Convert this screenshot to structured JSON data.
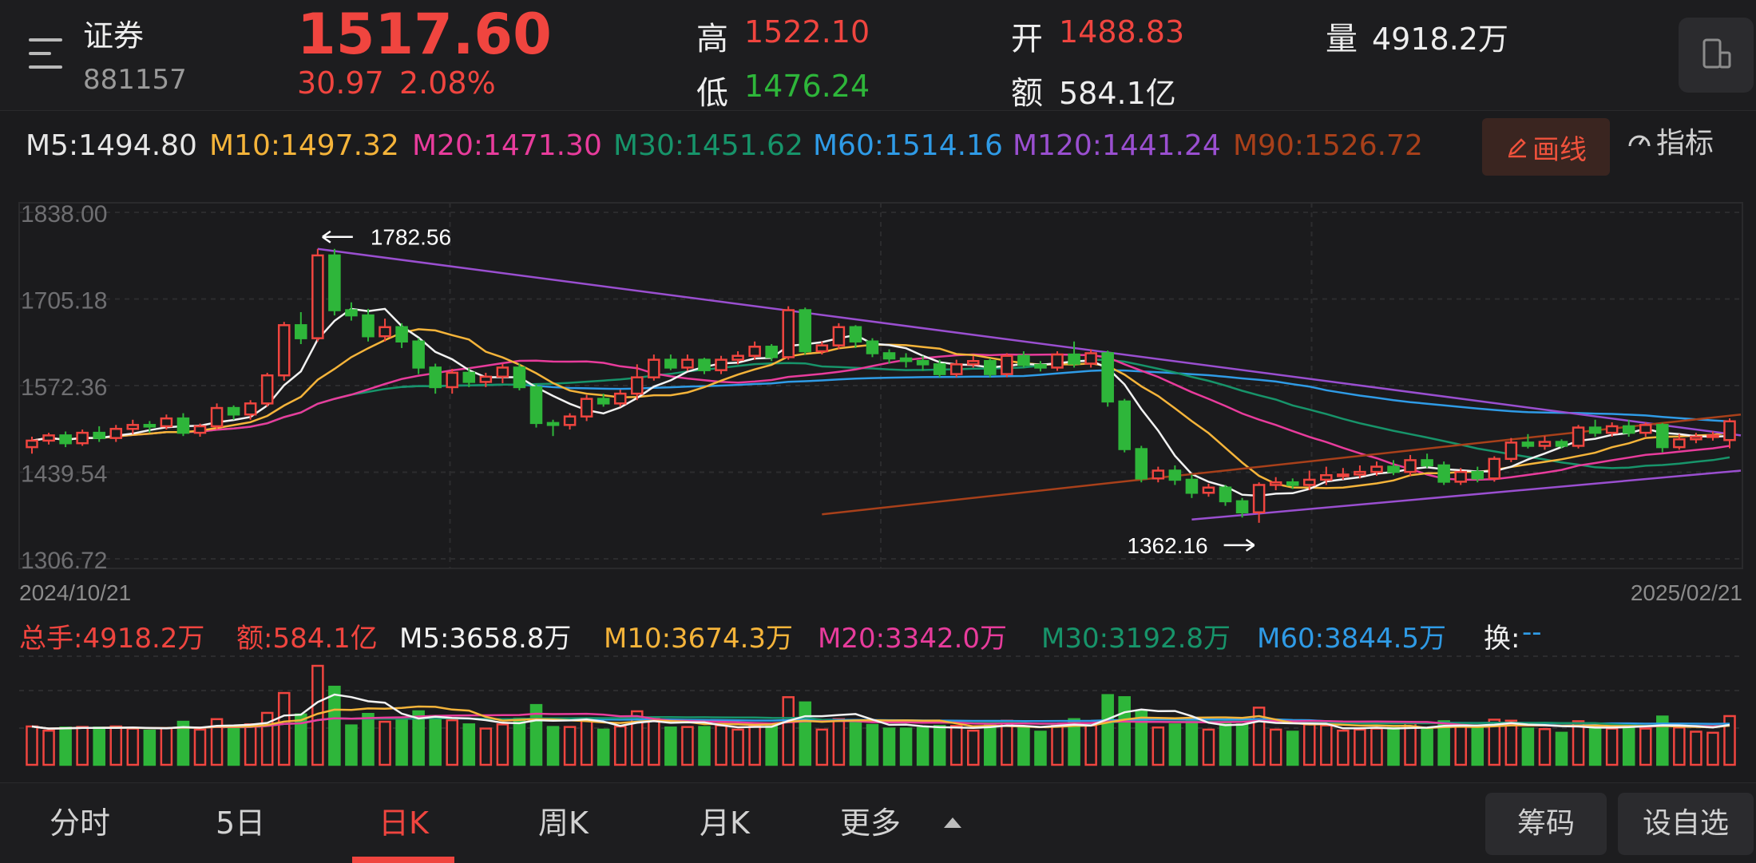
{
  "header": {
    "name": "证券",
    "code": "881157",
    "price": "1517.60",
    "change": "30.97",
    "change_pct": "2.08%",
    "high_label": "高",
    "high": "1522.10",
    "low_label": "低",
    "low": "1476.24",
    "open_label": "开",
    "open": "1488.83",
    "amount_label": "额",
    "amount": "584.1亿",
    "volume_label": "量",
    "volume": "4918.2万"
  },
  "ma": [
    {
      "label": "M5:1494.80",
      "color": "#f2f2f2"
    },
    {
      "label": "M10:1497.32",
      "color": "#f5b43a"
    },
    {
      "label": "M20:1471.30",
      "color": "#e83c9c"
    },
    {
      "label": "M30:1451.62",
      "color": "#17946a"
    },
    {
      "label": "M60:1514.16",
      "color": "#2f9be6"
    },
    {
      "label": "M120:1441.24",
      "color": "#9a4fd0"
    },
    {
      "label": "M90:1526.72",
      "color": "#a8401a"
    }
  ],
  "tools": {
    "draw": "画线",
    "indicator": "指标"
  },
  "chart_data": {
    "type": "candlestick",
    "y_ticks": [
      "1838.00",
      "1705.18",
      "1572.36",
      "1439.54",
      "1306.72"
    ],
    "ylim": [
      1306.72,
      1838.0
    ],
    "x_start": "2024/10/21",
    "x_end": "2025/02/21",
    "annotations": [
      {
        "label": "1782.56",
        "kind": "high"
      },
      {
        "label": "1362.16",
        "kind": "low"
      }
    ],
    "candles": [
      [
        1478,
        1488,
        1468,
        1494
      ],
      [
        1488,
        1496,
        1482,
        1500
      ],
      [
        1496,
        1484,
        1478,
        1502
      ],
      [
        1484,
        1500,
        1480,
        1505
      ],
      [
        1500,
        1492,
        1486,
        1510
      ],
      [
        1492,
        1506,
        1486,
        1512
      ],
      [
        1506,
        1512,
        1498,
        1520
      ],
      [
        1512,
        1510,
        1500,
        1518
      ],
      [
        1510,
        1522,
        1505,
        1528
      ],
      [
        1522,
        1500,
        1495,
        1530
      ],
      [
        1500,
        1510,
        1494,
        1514
      ],
      [
        1510,
        1538,
        1505,
        1545
      ],
      [
        1538,
        1528,
        1520,
        1542
      ],
      [
        1528,
        1545,
        1520,
        1550
      ],
      [
        1545,
        1588,
        1540,
        1592
      ],
      [
        1588,
        1665,
        1580,
        1670
      ],
      [
        1665,
        1645,
        1636,
        1685
      ],
      [
        1645,
        1772,
        1640,
        1782
      ],
      [
        1772,
        1688,
        1680,
        1782
      ],
      [
        1688,
        1680,
        1672,
        1700
      ],
      [
        1680,
        1648,
        1640,
        1690
      ],
      [
        1648,
        1662,
        1640,
        1675
      ],
      [
        1662,
        1640,
        1630,
        1668
      ],
      [
        1640,
        1600,
        1590,
        1645
      ],
      [
        1600,
        1570,
        1560,
        1606
      ],
      [
        1570,
        1592,
        1560,
        1598
      ],
      [
        1592,
        1578,
        1570,
        1600
      ],
      [
        1578,
        1586,
        1570,
        1592
      ],
      [
        1586,
        1600,
        1576,
        1606
      ],
      [
        1600,
        1570,
        1565,
        1606
      ],
      [
        1570,
        1515,
        1508,
        1575
      ],
      [
        1515,
        1512,
        1495,
        1520
      ],
      [
        1512,
        1525,
        1505,
        1530
      ],
      [
        1525,
        1552,
        1518,
        1558
      ],
      [
        1552,
        1545,
        1540,
        1560
      ],
      [
        1545,
        1560,
        1540,
        1566
      ],
      [
        1560,
        1585,
        1550,
        1605
      ],
      [
        1585,
        1612,
        1580,
        1620
      ],
      [
        1612,
        1600,
        1596,
        1620
      ],
      [
        1600,
        1612,
        1595,
        1620
      ],
      [
        1612,
        1596,
        1590,
        1615
      ],
      [
        1596,
        1612,
        1590,
        1618
      ],
      [
        1612,
        1618,
        1605,
        1625
      ],
      [
        1618,
        1632,
        1612,
        1640
      ],
      [
        1632,
        1616,
        1610,
        1636
      ],
      [
        1616,
        1688,
        1612,
        1694
      ],
      [
        1688,
        1625,
        1620,
        1692
      ],
      [
        1625,
        1634,
        1620,
        1640
      ],
      [
        1634,
        1662,
        1628,
        1668
      ],
      [
        1662,
        1640,
        1630,
        1665
      ],
      [
        1640,
        1622,
        1616,
        1645
      ],
      [
        1622,
        1614,
        1606,
        1628
      ],
      [
        1614,
        1610,
        1600,
        1622
      ],
      [
        1610,
        1605,
        1595,
        1618
      ],
      [
        1605,
        1590,
        1585,
        1612
      ],
      [
        1590,
        1605,
        1585,
        1612
      ],
      [
        1605,
        1610,
        1600,
        1618
      ],
      [
        1610,
        1590,
        1585,
        1614
      ],
      [
        1590,
        1618,
        1585,
        1622
      ],
      [
        1618,
        1604,
        1600,
        1625
      ],
      [
        1604,
        1600,
        1594,
        1610
      ],
      [
        1600,
        1620,
        1595,
        1625
      ],
      [
        1620,
        1606,
        1600,
        1640
      ],
      [
        1606,
        1622,
        1600,
        1628
      ],
      [
        1622,
        1548,
        1540,
        1626
      ],
      [
        1548,
        1475,
        1470,
        1552
      ],
      [
        1475,
        1430,
        1424,
        1480
      ],
      [
        1430,
        1442,
        1424,
        1448
      ],
      [
        1442,
        1428,
        1420,
        1450
      ],
      [
        1428,
        1408,
        1400,
        1436
      ],
      [
        1408,
        1416,
        1402,
        1422
      ],
      [
        1416,
        1395,
        1388,
        1420
      ],
      [
        1395,
        1378,
        1370,
        1400
      ],
      [
        1378,
        1420,
        1362,
        1424
      ],
      [
        1420,
        1424,
        1412,
        1432
      ],
      [
        1424,
        1420,
        1414,
        1430
      ],
      [
        1420,
        1428,
        1412,
        1442
      ],
      [
        1428,
        1435,
        1420,
        1448
      ],
      [
        1435,
        1436,
        1428,
        1446
      ],
      [
        1436,
        1440,
        1430,
        1450
      ],
      [
        1440,
        1448,
        1434,
        1456
      ],
      [
        1448,
        1440,
        1435,
        1458
      ],
      [
        1440,
        1458,
        1434,
        1466
      ],
      [
        1458,
        1450,
        1446,
        1468
      ],
      [
        1450,
        1425,
        1420,
        1456
      ],
      [
        1425,
        1440,
        1420,
        1446
      ],
      [
        1440,
        1430,
        1424,
        1448
      ],
      [
        1430,
        1460,
        1425,
        1464
      ],
      [
        1460,
        1485,
        1455,
        1492
      ],
      [
        1485,
        1480,
        1476,
        1498
      ],
      [
        1480,
        1486,
        1474,
        1495
      ],
      [
        1486,
        1480,
        1476,
        1490
      ],
      [
        1480,
        1508,
        1476,
        1512
      ],
      [
        1508,
        1500,
        1494,
        1520
      ],
      [
        1500,
        1510,
        1494,
        1516
      ],
      [
        1510,
        1500,
        1494,
        1520
      ],
      [
        1500,
        1512,
        1494,
        1516
      ],
      [
        1512,
        1478,
        1470,
        1515
      ],
      [
        1478,
        1490,
        1474,
        1498
      ],
      [
        1490,
        1494,
        1484,
        1500
      ],
      [
        1494,
        1496,
        1488,
        1502
      ],
      [
        1488.83,
        1517.6,
        1476.24,
        1522.1
      ]
    ]
  },
  "volume": {
    "total_label": "总手:4918.2万",
    "amount_label": "额:584.1亿",
    "ma": [
      {
        "label": "M5:3658.8万",
        "color": "#f2f2f2"
      },
      {
        "label": "M10:3674.3万",
        "color": "#f5b43a"
      },
      {
        "label": "M20:3342.0万",
        "color": "#e83c9c"
      },
      {
        "label": "M30:3192.8万",
        "color": "#17946a"
      },
      {
        "label": "M60:3844.5万",
        "color": "#2f9be6"
      }
    ],
    "turnover_label": "换:",
    "turnover_value": "--"
  },
  "tabs": {
    "items": [
      "分时",
      "5日",
      "日K",
      "周K",
      "月K",
      "更多"
    ],
    "active": "日K",
    "chips": "筹码",
    "add_watch": "设自选"
  },
  "colors": {
    "up": "#f0453f",
    "down": "#2eb63a",
    "background": "#1b1b1d"
  }
}
